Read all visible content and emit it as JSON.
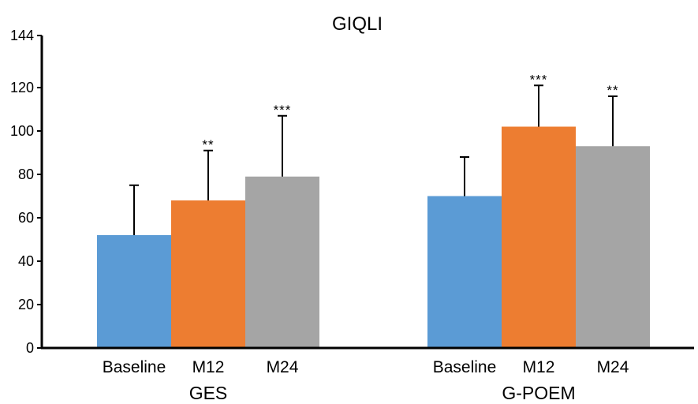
{
  "chart_data": {
    "type": "bar",
    "title": "GIQLI",
    "xlabel": "",
    "ylabel": "",
    "ylim": [
      0,
      144
    ],
    "yticks": [
      0,
      20,
      40,
      60,
      80,
      100,
      120,
      144
    ],
    "grid": false,
    "legend": "none",
    "groups": [
      {
        "name": "GES",
        "bars": [
          {
            "label": "Baseline",
            "value": 52,
            "error": 23,
            "sig": "",
            "color": "#5b9bd5"
          },
          {
            "label": "M12",
            "value": 68,
            "error": 23,
            "sig": "**",
            "color": "#ed7d31"
          },
          {
            "label": "M24",
            "value": 79,
            "error": 28,
            "sig": "***",
            "color": "#a5a5a5"
          }
        ]
      },
      {
        "name": "G-POEM",
        "bars": [
          {
            "label": "Baseline",
            "value": 70,
            "error": 18,
            "sig": "",
            "color": "#5b9bd5"
          },
          {
            "label": "M12",
            "value": 102,
            "error": 19,
            "sig": "***",
            "color": "#ed7d31"
          },
          {
            "label": "M24",
            "value": 93,
            "error": 23,
            "sig": "**",
            "color": "#a5a5a5"
          }
        ]
      }
    ]
  }
}
